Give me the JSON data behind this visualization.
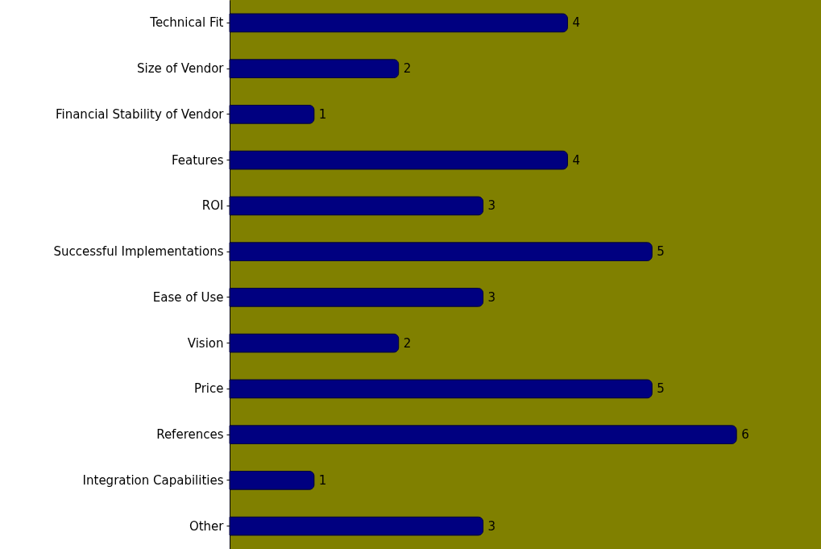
{
  "chart_data": {
    "type": "bar",
    "orientation": "horizontal",
    "categories": [
      "Technical Fit",
      "Size of Vendor",
      "Financial Stability of Vendor",
      "Features",
      "ROI",
      "Successful Implementations",
      "Ease of Use",
      "Vision",
      "Price",
      "References",
      "Integration Capabilities",
      "Other"
    ],
    "values": [
      4,
      2,
      1,
      4,
      3,
      5,
      3,
      2,
      5,
      6,
      1,
      3
    ],
    "color": "#000080",
    "xlim": [
      0,
      7
    ],
    "data_labels": true,
    "tick_labels": "y"
  }
}
